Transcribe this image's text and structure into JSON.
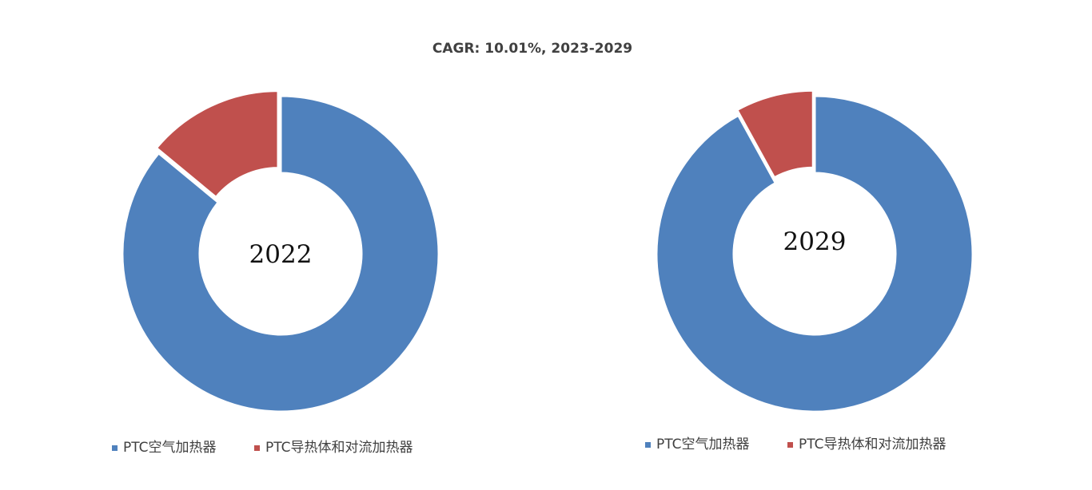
{
  "chart_data": {
    "type": "donut",
    "title": "CAGR: 10.01%, 2023-2029",
    "charts": [
      {
        "center_label": "2022",
        "slices": [
          {
            "name": "PTC空气加热器",
            "value": 86,
            "color": "#4F81BD"
          },
          {
            "name": "PTC导热体和对流加热器",
            "value": 14,
            "color": "#C0504D"
          }
        ],
        "legend": [
          "PTC空气加热器",
          "PTC导热体和对流加热器"
        ],
        "legend_position": "bottom"
      },
      {
        "center_label": "2029",
        "slices": [
          {
            "name": "PTC空气加热器",
            "value": 92,
            "color": "#4F81BD"
          },
          {
            "name": "PTC导热体和对流加热器",
            "value": 8,
            "color": "#C0504D"
          }
        ],
        "legend": [
          "PTC空气加热器",
          "PTC导热体和对流加热器"
        ],
        "legend_position": "bottom"
      }
    ]
  }
}
